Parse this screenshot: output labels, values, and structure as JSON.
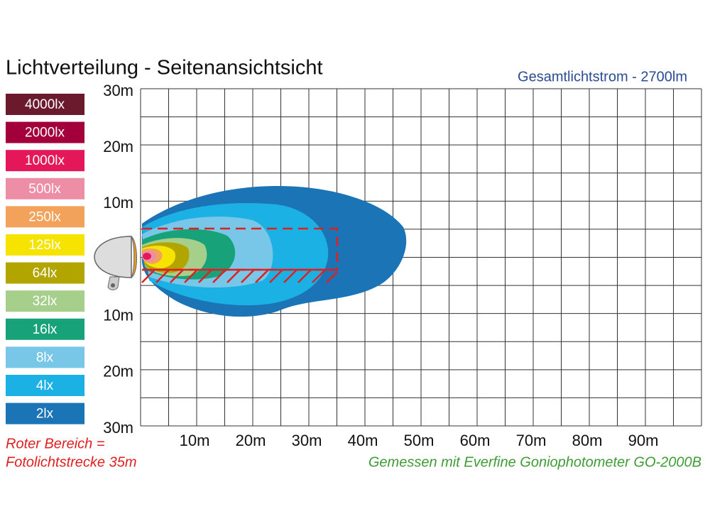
{
  "header": {
    "title": "Lichtverteilung - Seitenansichtsicht",
    "flux": "Gesamtlichtstrom -   2700lm"
  },
  "legend": [
    {
      "label": "4000lx",
      "color": "#6b1a2e"
    },
    {
      "label": "2000lx",
      "color": "#a3003b"
    },
    {
      "label": "1000lx",
      "color": "#e3175a"
    },
    {
      "label": "500lx",
      "color": "#ee8ea6"
    },
    {
      "label": "250lx",
      "color": "#f3a25b"
    },
    {
      "label": "125lx",
      "color": "#f6e400"
    },
    {
      "label": "64lx",
      "color": "#b3a500"
    },
    {
      "label": "32lx",
      "color": "#a6cf8c"
    },
    {
      "label": "16lx",
      "color": "#17a27a"
    },
    {
      "label": "8lx",
      "color": "#78c6e8"
    },
    {
      "label": "4lx",
      "color": "#1cb1e5"
    },
    {
      "label": "2lx",
      "color": "#1a74b6"
    }
  ],
  "y_axis": [
    "30m",
    "20m",
    "10m",
    "10m",
    "20m",
    "30m"
  ],
  "x_axis": [
    "10m",
    "20m",
    "30m",
    "40m",
    "50m",
    "60m",
    "70m",
    "80m",
    "90m"
  ],
  "notes": {
    "red_area": "Roter Bereich =",
    "red_area_2": "Fotolichtstrecke 35m",
    "measured": "Gemessen mit Everfine Goniophotometer GO-2000B"
  }
}
